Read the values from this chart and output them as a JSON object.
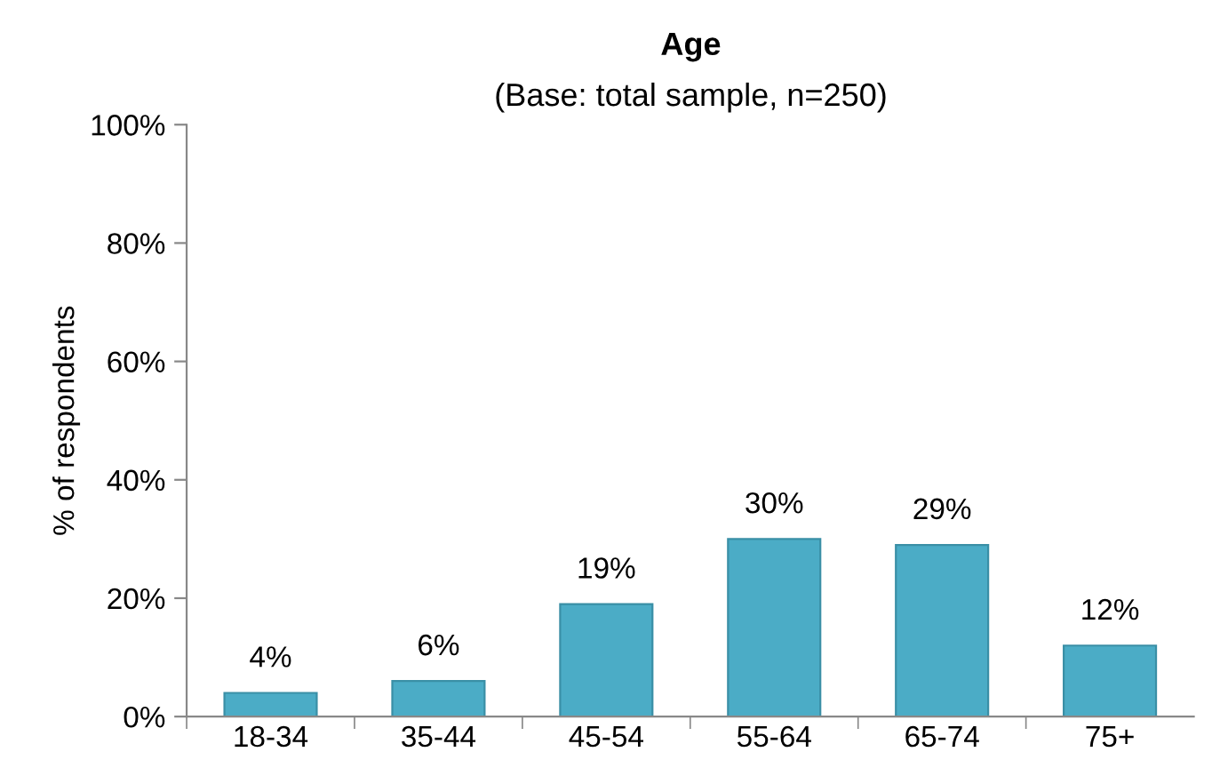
{
  "chart_data": {
    "type": "bar",
    "title": "Age",
    "subtitle": "(Base: total sample, n=250)",
    "ylabel": "% of respondents",
    "categories": [
      "18-34",
      "35-44",
      "45-54",
      "55-64",
      "65-74",
      "75+"
    ],
    "values": [
      4,
      6,
      19,
      30,
      29,
      12
    ],
    "value_labels": [
      "4%",
      "6%",
      "19%",
      "30%",
      "29%",
      "12%"
    ],
    "color": "#4bacc6",
    "ylim": [
      0,
      100
    ],
    "yticks": [
      {
        "value": 0,
        "label": "0%"
      },
      {
        "value": 20,
        "label": "20%"
      },
      {
        "value": 40,
        "label": "40%"
      },
      {
        "value": 60,
        "label": "60%"
      },
      {
        "value": 80,
        "label": "80%"
      },
      {
        "value": 100,
        "label": "100%"
      }
    ],
    "grid": false,
    "legend": false
  }
}
